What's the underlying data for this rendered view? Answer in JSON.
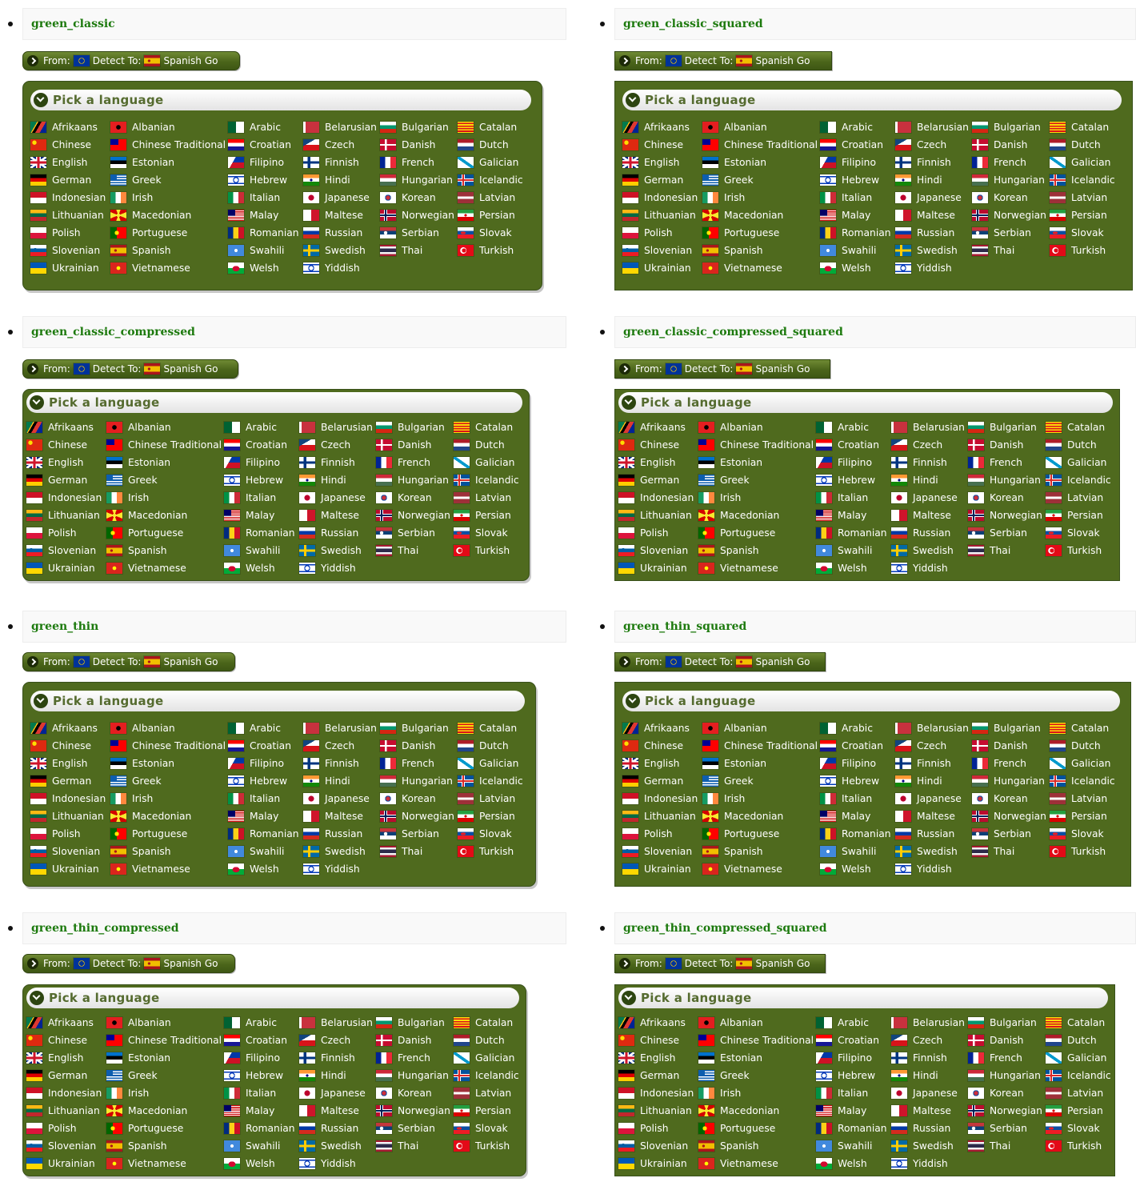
{
  "bar": {
    "from": "From:",
    "detect": "Detect",
    "to": "To:",
    "lang": "Spanish",
    "go": "Go"
  },
  "pick_title": "Pick a language",
  "variants": [
    {
      "title": "green_classic"
    },
    {
      "title": "green_classic_squared"
    },
    {
      "title": "green_classic_compressed"
    },
    {
      "title": "green_classic_compressed_squared"
    },
    {
      "title": "green_thin"
    },
    {
      "title": "green_thin_squared"
    },
    {
      "title": "green_thin_compressed"
    },
    {
      "title": "green_thin_compressed_squared"
    }
  ],
  "languages": [
    {
      "name": "Afrikaans",
      "flag": "za"
    },
    {
      "name": "Albanian",
      "flag": "al"
    },
    {
      "name": "Arabic",
      "flag": "dz"
    },
    {
      "name": "Belarusian",
      "flag": "by"
    },
    {
      "name": "Bulgarian",
      "flag": "bg"
    },
    {
      "name": "Catalan",
      "flag": "cat"
    },
    {
      "name": "Chinese",
      "flag": "cn"
    },
    {
      "name": "Chinese Traditional",
      "flag": "tw"
    },
    {
      "name": "Croatian",
      "flag": "hr"
    },
    {
      "name": "Czech",
      "flag": "cz"
    },
    {
      "name": "Danish",
      "flag": "dk"
    },
    {
      "name": "Dutch",
      "flag": "nl"
    },
    {
      "name": "English",
      "flag": "gb"
    },
    {
      "name": "Estonian",
      "flag": "ee"
    },
    {
      "name": "Filipino",
      "flag": "ph"
    },
    {
      "name": "Finnish",
      "flag": "fi"
    },
    {
      "name": "French",
      "flag": "fr"
    },
    {
      "name": "Galician",
      "flag": "gal"
    },
    {
      "name": "German",
      "flag": "de"
    },
    {
      "name": "Greek",
      "flag": "gr"
    },
    {
      "name": "Hebrew",
      "flag": "il"
    },
    {
      "name": "Hindi",
      "flag": "in"
    },
    {
      "name": "Hungarian",
      "flag": "hu"
    },
    {
      "name": "Icelandic",
      "flag": "is"
    },
    {
      "name": "Indonesian",
      "flag": "id"
    },
    {
      "name": "Irish",
      "flag": "ie"
    },
    {
      "name": "Italian",
      "flag": "it"
    },
    {
      "name": "Japanese",
      "flag": "jp"
    },
    {
      "name": "Korean",
      "flag": "kr"
    },
    {
      "name": "Latvian",
      "flag": "lv"
    },
    {
      "name": "Lithuanian",
      "flag": "lt"
    },
    {
      "name": "Macedonian",
      "flag": "mk"
    },
    {
      "name": "Malay",
      "flag": "my"
    },
    {
      "name": "Maltese",
      "flag": "mt"
    },
    {
      "name": "Norwegian",
      "flag": "no"
    },
    {
      "name": "Persian",
      "flag": "ir"
    },
    {
      "name": "Polish",
      "flag": "pl"
    },
    {
      "name": "Portuguese",
      "flag": "pt"
    },
    {
      "name": "Romanian",
      "flag": "ro"
    },
    {
      "name": "Russian",
      "flag": "ru"
    },
    {
      "name": "Serbian",
      "flag": "rs"
    },
    {
      "name": "Slovak",
      "flag": "sk"
    },
    {
      "name": "Slovenian",
      "flag": "si"
    },
    {
      "name": "Spanish",
      "flag": "es"
    },
    {
      "name": "Swahili",
      "flag": "ke"
    },
    {
      "name": "Swedish",
      "flag": "se"
    },
    {
      "name": "Thai",
      "flag": "th"
    },
    {
      "name": "Turkish",
      "flag": "tr"
    },
    {
      "name": "Ukrainian",
      "flag": "ua"
    },
    {
      "name": "Vietnamese",
      "flag": "vn"
    },
    {
      "name": "Welsh",
      "flag": "wales"
    },
    {
      "name": "Yiddish",
      "flag": "il"
    }
  ]
}
